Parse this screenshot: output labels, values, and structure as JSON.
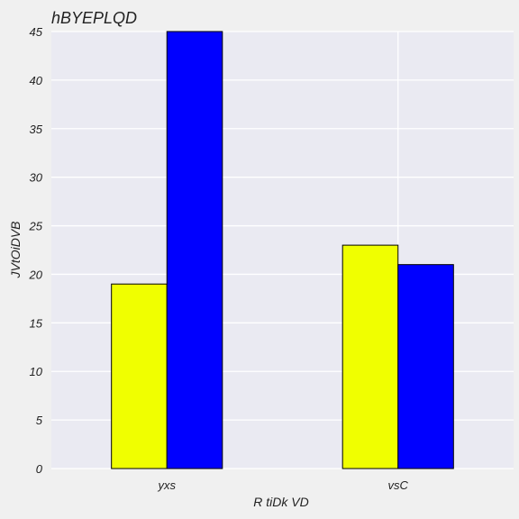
{
  "chart_data": {
    "type": "bar",
    "title": "hBYEPLQD",
    "xlabel": "R  tiDk VD",
    "ylabel": "JVtOiDVB",
    "categories": [
      "yxs",
      "vsC"
    ],
    "series": [
      {
        "values": [
          19,
          23
        ],
        "color": "#f0ff00"
      },
      {
        "values": [
          45,
          21
        ],
        "color": "#0000ff"
      }
    ],
    "ylim": [
      0,
      45
    ],
    "yticks": [
      0,
      5,
      10,
      15,
      20,
      25,
      30,
      35,
      40,
      45
    ],
    "grid": true,
    "legend": "none",
    "plot_background": "#eaeaf2",
    "grid_color": "#ffffff"
  }
}
